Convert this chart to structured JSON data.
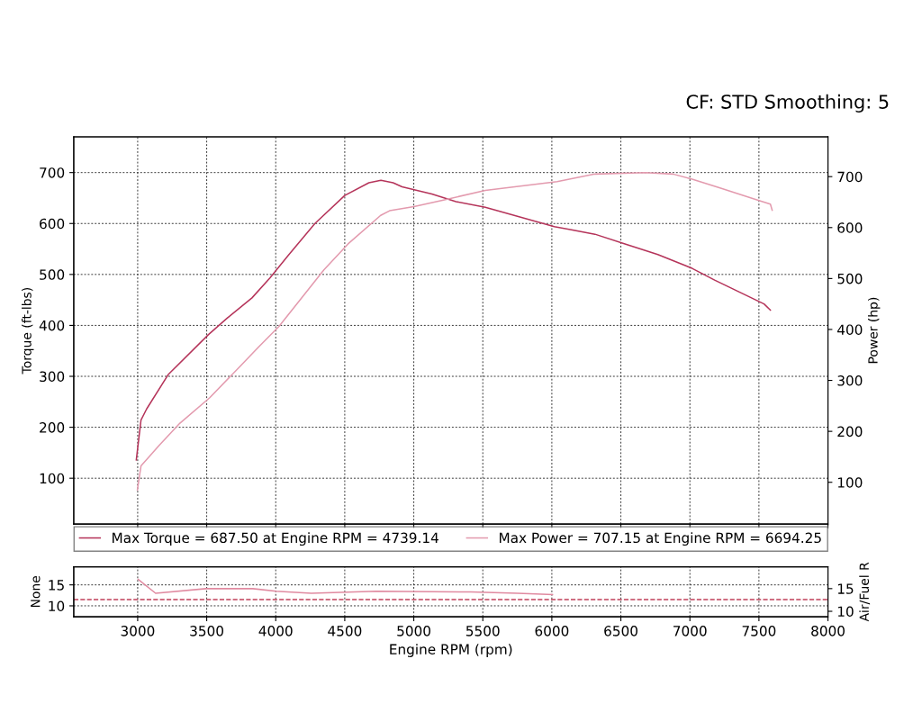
{
  "chart_data": [
    {
      "type": "line",
      "title": "CF: STD Smoothing: 5",
      "ylabel": "Torque (ft-lbs)",
      "y2label": "Power (hp)",
      "xlim": [
        2537,
        8000
      ],
      "ylim": [
        10,
        770
      ],
      "yticks": [
        100,
        200,
        300,
        400,
        500,
        600,
        700
      ],
      "y2lim": [
        18,
        778
      ],
      "y2ticks": [
        100,
        200,
        300,
        400,
        500,
        600,
        700
      ],
      "xticks": [
        3000,
        3500,
        4000,
        4500,
        5000,
        5500,
        6000,
        6500,
        7000,
        7500,
        8000
      ],
      "tick_labels": "y",
      "grid": true,
      "legend": "bottom",
      "line_style": "solid",
      "series": [
        {
          "name": "Max Torque = 687.50 at Engine RPM = 4739.14",
          "color": "#b5345a",
          "x": [
            2990,
            3024,
            3065,
            3220,
            3513,
            3652,
            3828,
            3958,
            4089,
            4284,
            4500,
            4675,
            4762,
            4850,
            4915,
            5131,
            5306,
            5518,
            6018,
            6312,
            6540,
            6768,
            7016,
            7179,
            7537,
            7583
          ],
          "values": [
            136,
            214,
            236,
            303,
            382,
            415,
            454,
            493,
            537,
            600,
            655,
            680,
            685,
            680,
            672,
            658,
            643,
            632,
            594,
            579,
            559,
            539,
            512,
            489,
            442,
            430
          ]
        },
        {
          "name": "Max Power = 707.15 at Engine RPM = 6694.25",
          "color": "#e39aae",
          "axis": "y2",
          "x": [
            2998,
            3024,
            3154,
            3306,
            3522,
            3743,
            3874,
            4024,
            4173,
            4349,
            4524,
            4760,
            4825,
            5001,
            5215,
            5518,
            6038,
            6312,
            6677,
            6878,
            7016,
            7218,
            7490,
            7583,
            7596
          ],
          "values": [
            85,
            132,
            172,
            216,
            266,
            328,
            365,
            406,
            457,
            517,
            568,
            624,
            633,
            641,
            654,
            673,
            690,
            705,
            708,
            705,
            695,
            678,
            654,
            646,
            634
          ]
        }
      ]
    },
    {
      "type": "line",
      "xlabel": "Engine RPM (rpm)",
      "ylabel": "None",
      "y2label": "Air/Fuel R",
      "xlim": [
        2537,
        8000
      ],
      "xticks": [
        3000,
        3500,
        4000,
        4500,
        5000,
        5500,
        6000,
        6500,
        7000,
        7500,
        8000
      ],
      "ylim": [
        7.4,
        19.3
      ],
      "yticks": [
        10,
        15
      ],
      "y2lim": [
        8.8,
        19.8
      ],
      "y2ticks": [
        10,
        15
      ],
      "grid": true,
      "line_style": "solid",
      "series": [
        {
          "color": "#e08aa0",
          "x": [
            3004,
            3130,
            3495,
            3834,
            4004,
            4258,
            4728,
            5412,
            5751,
            6005
          ],
          "values": [
            16.3,
            13.0,
            14.1,
            14.1,
            13.5,
            13.0,
            13.5,
            13.3,
            13.0,
            12.7
          ]
        }
      ],
      "ref_lines": [
        {
          "axis": "y",
          "value": 11.5,
          "color": "#c0405a",
          "line_style": "dashed"
        }
      ]
    }
  ]
}
